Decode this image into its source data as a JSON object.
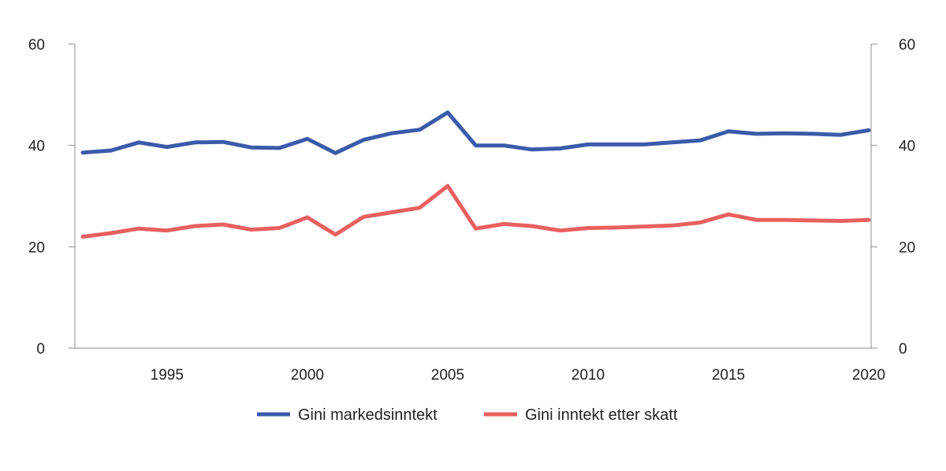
{
  "chart_data": {
    "type": "line",
    "title": "",
    "xlabel": "",
    "ylabel": "",
    "ylim": [
      0,
      60
    ],
    "xlim": [
      1992,
      2020
    ],
    "y_ticks": [
      "0",
      "20",
      "40",
      "60"
    ],
    "x_ticks": [
      "1995",
      "2000",
      "2005",
      "2010",
      "2015",
      "2020"
    ],
    "grid": false,
    "secondary_y_axis": true,
    "legend_position": "bottom",
    "x": [
      1992,
      1993,
      1994,
      1995,
      1996,
      1997,
      1998,
      1999,
      2000,
      2001,
      2002,
      2003,
      2004,
      2005,
      2006,
      2007,
      2008,
      2009,
      2010,
      2011,
      2012,
      2013,
      2014,
      2015,
      2016,
      2017,
      2018,
      2019,
      2020
    ],
    "series": [
      {
        "name": "Gini markedsinntekt",
        "color": "#3a5ba9",
        "values": [
          38.6,
          39.0,
          40.6,
          39.7,
          40.6,
          40.7,
          39.6,
          39.5,
          41.3,
          38.5,
          41.1,
          42.4,
          43.1,
          46.5,
          40.0,
          40.0,
          39.2,
          39.4,
          40.2,
          40.2,
          40.2,
          40.6,
          41.0,
          42.8,
          42.3,
          42.4,
          42.3,
          42.1,
          43.0
        ]
      },
      {
        "name": "Gini inntekt etter skatt",
        "color": "#e8605f",
        "values": [
          22.0,
          22.7,
          23.6,
          23.2,
          24.1,
          24.4,
          23.4,
          23.7,
          25.8,
          22.4,
          25.9,
          26.8,
          27.7,
          32.0,
          23.6,
          24.5,
          24.1,
          23.2,
          23.7,
          23.8,
          24.0,
          24.2,
          24.8,
          26.4,
          25.3,
          25.3,
          25.2,
          25.1,
          25.3
        ]
      }
    ]
  }
}
